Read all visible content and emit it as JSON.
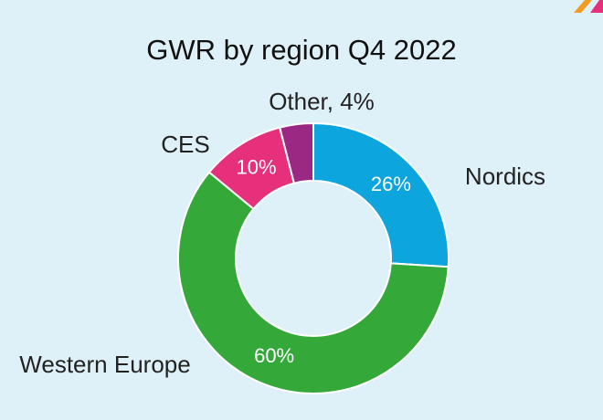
{
  "chart_data": {
    "type": "donut",
    "title": "GWR by region Q4 2022",
    "categories": [
      "Nordics",
      "Western Europe",
      "CES",
      "Other, 4%"
    ],
    "values": [
      26,
      60,
      10,
      4
    ],
    "value_labels": [
      "26%",
      "60%",
      "10%",
      null
    ],
    "colors": [
      "#0ca5de",
      "#34a93a",
      "#e6307b",
      "#9b2983"
    ]
  }
}
